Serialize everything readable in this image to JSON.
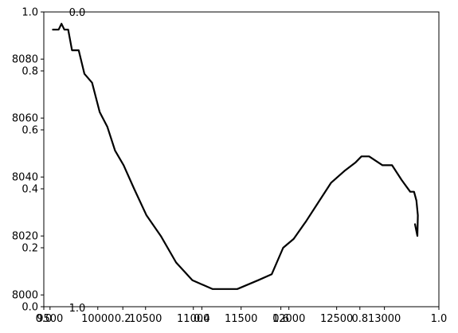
{
  "chart_data": {
    "type": "line",
    "title": "",
    "xlabel": "",
    "ylabel": "",
    "grid": false,
    "xlim": [
      9435,
      13570
    ],
    "ylim": [
      7996,
      8096
    ],
    "x_ticks": [
      9500,
      10000,
      10500,
      11000,
      11500,
      12000,
      12500,
      13000
    ],
    "x_tick_labels": [
      "9500",
      "10000",
      "10500",
      "11000",
      "11500",
      "12000",
      "12500",
      "13000"
    ],
    "y_ticks": [
      8000,
      8020,
      8040,
      8060,
      8080
    ],
    "y_tick_labels": [
      "8000",
      "8020",
      "8040",
      "8060",
      "8080"
    ],
    "overlay_axes": {
      "x_ticks": [
        0.0,
        0.2,
        0.4,
        0.6,
        0.8,
        1.0
      ],
      "x_tick_labels": [
        "0.0",
        "0.2",
        "0.4",
        "0.6",
        "0.8",
        "1.0"
      ],
      "y_ticks": [
        0.0,
        0.2,
        0.4,
        0.6,
        0.8,
        1.0
      ],
      "y_tick_labels": [
        "0.0",
        "0.2",
        "0.4",
        "0.6",
        "0.8",
        "1.0"
      ],
      "top_label": "0.0",
      "bottom_extra_label": "1.0"
    },
    "series": [
      {
        "color": "#000000",
        "x": [
          9530,
          9590,
          9620,
          9650,
          9690,
          9730,
          9800,
          9860,
          9940,
          10020,
          10100,
          10180,
          10270,
          10380,
          10510,
          10660,
          10820,
          10990,
          11200,
          11460,
          11680,
          11820,
          11940,
          12050,
          12180,
          12300,
          12440,
          12580,
          12700,
          12760,
          12840,
          12980,
          13080,
          13180,
          13270,
          13310,
          13335,
          13350,
          13345,
          13320
        ],
        "y": [
          8090,
          8090,
          8092,
          8090,
          8090,
          8083,
          8083,
          8075,
          8072,
          8062,
          8057,
          8049,
          8044,
          8036,
          8027,
          8020,
          8011,
          8005,
          8002,
          8002,
          8005,
          8007,
          8016,
          8019,
          8025,
          8031,
          8038,
          8042,
          8045,
          8047,
          8047,
          8044,
          8044,
          8039,
          8035,
          8035,
          8032,
          8027,
          8020,
          8024
        ]
      }
    ]
  }
}
